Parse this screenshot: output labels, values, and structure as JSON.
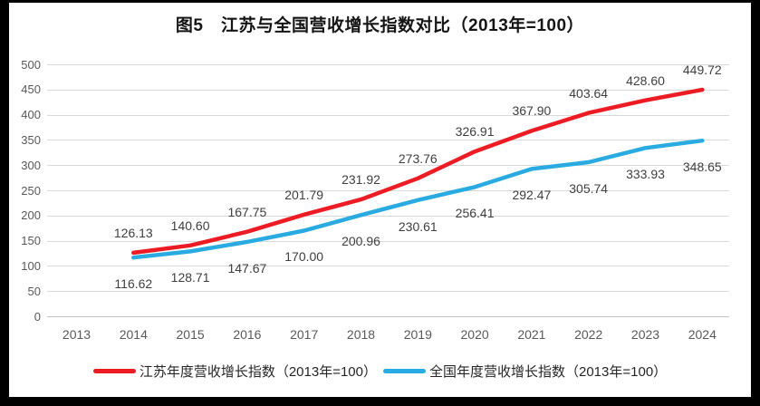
{
  "title": "图5　江苏与全国营收增长指数对比（2013年=100）",
  "colors": {
    "frame_background": "#000000",
    "chart_background": "#ffffff",
    "gridline": "#d9d9d9",
    "axis_line": "#c3c3c3",
    "axis_text": "#595959",
    "data_label_text": "#3f3f3f",
    "title_text": "#151515",
    "jiangsu_red": "#ed1c24",
    "national_blue": "#29abe2"
  },
  "chart_data": {
    "type": "line",
    "title": "图5　江苏与全国营收增长指数对比（2013年=100）",
    "x_categories": [
      "2013",
      "2014",
      "2015",
      "2016",
      "2017",
      "2018",
      "2019",
      "2020",
      "2021",
      "2022",
      "2023",
      "2024"
    ],
    "y_axis": {
      "min": 0,
      "max": 500,
      "step": 50,
      "ticks": [
        "0",
        "50",
        "100",
        "150",
        "200",
        "250",
        "300",
        "350",
        "400",
        "450",
        "500"
      ]
    },
    "grid": true,
    "legend_position": "bottom",
    "series": [
      {
        "name": "江苏年度营收增长指数（2013年=100）",
        "color": "#ed1c24",
        "start_category": "2014",
        "label_position": "above",
        "values": [
          "126.13",
          "140.60",
          "167.75",
          "201.79",
          "231.92",
          "273.76",
          "326.91",
          "367.90",
          "403.64",
          "428.60",
          "449.72"
        ]
      },
      {
        "name": "全国年度营收增长指数（2013年=100）",
        "color": "#29abe2",
        "start_category": "2014",
        "label_position": "below",
        "values": [
          "116.62",
          "128.71",
          "147.67",
          "170.00",
          "200.96",
          "230.61",
          "256.41",
          "292.47",
          "305.74",
          "333.93",
          "348.65"
        ]
      }
    ]
  }
}
